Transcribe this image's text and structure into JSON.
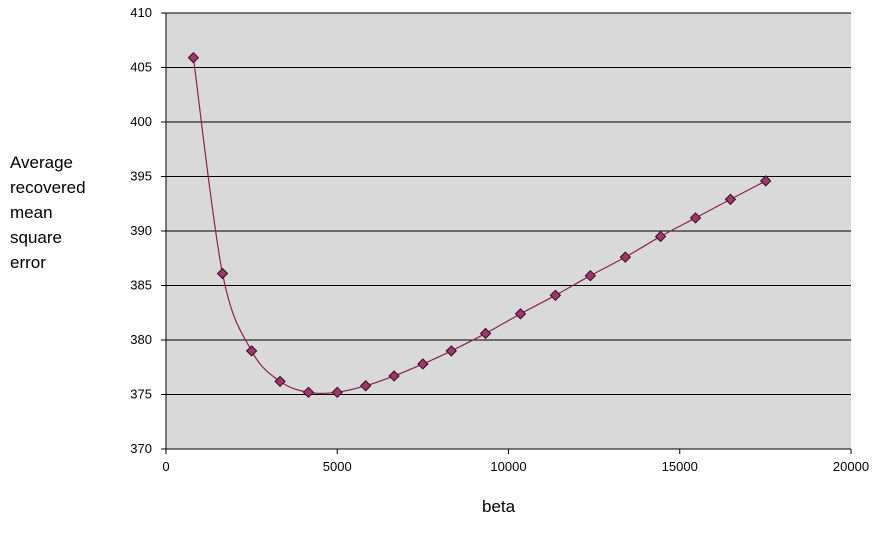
{
  "chart_data": {
    "type": "scatter",
    "title": "",
    "xlabel": "beta",
    "ylabel_lines": [
      "Average",
      "recovered",
      "mean",
      "square",
      "error"
    ],
    "xlim": [
      0,
      20000
    ],
    "ylim": [
      370,
      410
    ],
    "x_ticks": [
      0,
      5000,
      10000,
      15000,
      20000
    ],
    "y_ticks": [
      370,
      375,
      380,
      385,
      390,
      395,
      400,
      405,
      410
    ],
    "grid": "horizontal",
    "legend": "none",
    "series": [
      {
        "x": [
          800,
          1650,
          2500,
          3330,
          4160,
          5000,
          5830,
          6660,
          7500,
          8330,
          9330,
          10350,
          11370,
          12390,
          13410,
          14440,
          15460,
          16480,
          17510
        ],
        "y": [
          405.9,
          386.1,
          379.0,
          376.2,
          375.2,
          375.2,
          375.8,
          376.7,
          377.8,
          379.0,
          380.6,
          382.4,
          384.1,
          385.9,
          387.6,
          389.5,
          391.2,
          392.9,
          394.6
        ]
      }
    ],
    "colors": {
      "plot_background": "#d9d9d9",
      "gridline": "#000000",
      "line": "#8b2252",
      "marker_fill": "#9b3a6a",
      "marker_edge": "#3a0a22"
    }
  }
}
